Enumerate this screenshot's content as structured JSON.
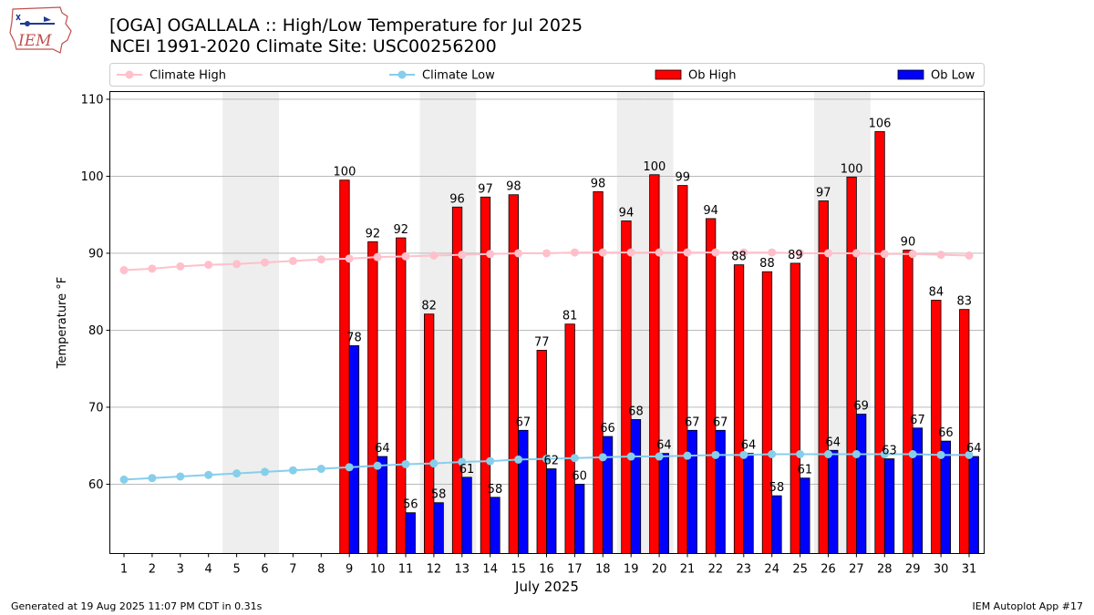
{
  "header": {
    "title": "[OGA] OGALLALA :: High/Low Temperature for Jul 2025",
    "subtitle": "NCEI 1991-2020 Climate Site: USC00256200",
    "logo_text": "IEM"
  },
  "footer": {
    "left": "Generated at 19 Aug 2025 11:07 PM CDT in 0.31s",
    "right": "IEM Autoplot App #17"
  },
  "colors": {
    "ob_high": "#ff0000",
    "ob_low": "#0000ff",
    "climate_high": "#ffc0cb",
    "climate_low": "#87ceeb",
    "weekend_shade": "#eeeeee",
    "grid": "#b0b0b0"
  },
  "chart_data": {
    "type": "bar",
    "xlabel": "July 2025",
    "ylabel": "Temperature °F",
    "ylim": [
      51,
      111
    ],
    "yticks": [
      60,
      70,
      80,
      90,
      100,
      110
    ],
    "grid": "horizontal",
    "legend_position": "top",
    "categories": [
      "1",
      "2",
      "3",
      "4",
      "5",
      "6",
      "7",
      "8",
      "9",
      "10",
      "11",
      "12",
      "13",
      "14",
      "15",
      "16",
      "17",
      "18",
      "19",
      "20",
      "21",
      "22",
      "23",
      "24",
      "25",
      "26",
      "27",
      "28",
      "29",
      "30",
      "31"
    ],
    "shaded_days": [
      5,
      6,
      12,
      13,
      19,
      20,
      26,
      27
    ],
    "series": [
      {
        "name": "Climate High",
        "kind": "line",
        "values": [
          87.8,
          88.0,
          88.3,
          88.5,
          88.6,
          88.8,
          89.0,
          89.2,
          89.3,
          89.5,
          89.6,
          89.7,
          89.8,
          89.9,
          90.0,
          90.0,
          90.1,
          90.1,
          90.1,
          90.1,
          90.1,
          90.1,
          90.1,
          90.1,
          90.0,
          90.0,
          90.0,
          89.9,
          89.9,
          89.8,
          89.7
        ]
      },
      {
        "name": "Climate Low",
        "kind": "line",
        "values": [
          60.6,
          60.8,
          61.0,
          61.2,
          61.4,
          61.6,
          61.8,
          62.0,
          62.2,
          62.4,
          62.6,
          62.7,
          62.9,
          63.0,
          63.2,
          63.3,
          63.4,
          63.5,
          63.6,
          63.6,
          63.7,
          63.8,
          63.8,
          63.9,
          63.9,
          63.9,
          63.9,
          63.9,
          63.9,
          63.8,
          63.8
        ]
      },
      {
        "name": "Ob High",
        "kind": "bar",
        "values": [
          null,
          null,
          null,
          null,
          null,
          null,
          null,
          null,
          99.5,
          91.5,
          92.0,
          82.1,
          96.0,
          97.3,
          97.6,
          77.4,
          80.8,
          98.0,
          94.2,
          100.2,
          98.8,
          94.5,
          88.5,
          87.6,
          88.7,
          96.8,
          99.9,
          105.8,
          90.4,
          83.9,
          82.7
        ],
        "labels": [
          "",
          "",
          "",
          "",
          "",
          "",
          "",
          "",
          "100",
          "92",
          "92",
          "82",
          "96",
          "97",
          "98",
          "77",
          "81",
          "98",
          "94",
          "100",
          "99",
          "94",
          "88",
          "88",
          "89",
          "97",
          "100",
          "106",
          "90",
          "84",
          "83"
        ]
      },
      {
        "name": "Ob Low",
        "kind": "bar",
        "values": [
          null,
          null,
          null,
          null,
          null,
          null,
          null,
          null,
          78.0,
          63.6,
          56.3,
          57.6,
          60.9,
          58.3,
          67.0,
          62.0,
          60.0,
          66.2,
          68.4,
          64.0,
          67.0,
          67.0,
          64.0,
          58.5,
          60.8,
          64.4,
          69.1,
          63.3,
          67.3,
          65.6,
          63.6
        ],
        "labels": [
          "",
          "",
          "",
          "",
          "",
          "",
          "",
          "",
          "78",
          "64",
          "56",
          "58",
          "61",
          "58",
          "67",
          "62",
          "60",
          "66",
          "68",
          "64",
          "67",
          "67",
          "64",
          "58",
          "61",
          "64",
          "69",
          "63",
          "67",
          "66",
          "64"
        ]
      }
    ]
  }
}
